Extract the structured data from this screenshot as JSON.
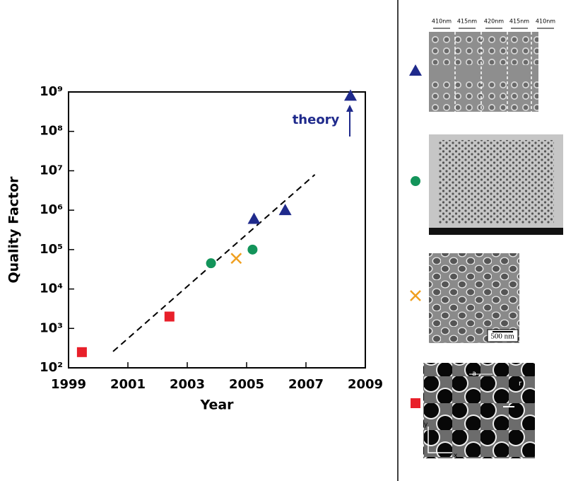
{
  "chart_data": {
    "type": "scatter",
    "x_label": "Year",
    "y_label": "Quality Factor",
    "xlim": [
      1999,
      2009
    ],
    "xticks": [
      1999,
      2001,
      2003,
      2005,
      2007,
      2009
    ],
    "ylim": [
      100,
      1000000000
    ],
    "log_y": true,
    "yticks": [
      {
        "value": 100,
        "label": "10²"
      },
      {
        "value": 1000,
        "label": "10³"
      },
      {
        "value": 10000,
        "label": "10⁴"
      },
      {
        "value": 100000,
        "label": "10⁵"
      },
      {
        "value": 1000000,
        "label": "10⁶"
      },
      {
        "value": 10000000,
        "label": "10⁷"
      },
      {
        "value": 100000000,
        "label": "10⁸"
      },
      {
        "value": 1000000000,
        "label": "10⁹"
      }
    ],
    "series": [
      {
        "marker": "triangle",
        "color": "#1f2a8c",
        "x": [
          2005.25,
          2006.3,
          2008.5
        ],
        "values": [
          600000,
          1000000,
          800000000
        ]
      },
      {
        "marker": "circle",
        "color": "#13945a",
        "x": [
          2003.8,
          2005.2
        ],
        "values": [
          45000,
          100000
        ]
      },
      {
        "marker": "cross",
        "color": "#f0a020",
        "x": [
          2004.65
        ],
        "values": [
          60000
        ]
      },
      {
        "marker": "square",
        "color": "#e8202a",
        "x": [
          1999.45,
          2002.4
        ],
        "values": [
          250,
          2000
        ]
      }
    ],
    "fit": {
      "x": [
        2000.5,
        2007.3
      ],
      "values": [
        260,
        8000000
      ]
    },
    "annotation": {
      "text": "theory",
      "color": "#1f2a8c"
    }
  },
  "panel": {
    "spacings": [
      "410nm",
      "415nm",
      "420nm",
      "415nm",
      "410nm"
    ],
    "scale_bar": "500 nm",
    "lattice_label": "a",
    "radius_label": "r",
    "axis_y": "y",
    "axis_x": "x"
  }
}
